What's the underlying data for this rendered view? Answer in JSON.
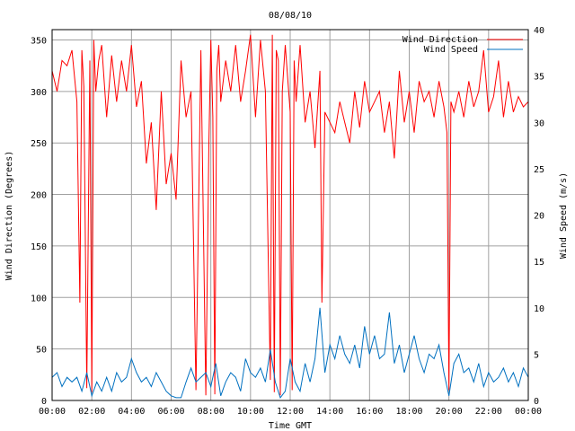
{
  "chart_data": {
    "type": "line",
    "title": "08/08/10",
    "xlabel": "Time GMT",
    "ylabel_left": "Wind Direction (Degrees)",
    "ylabel_right": "Wind Speed (m/s)",
    "x_ticks": [
      "00:00",
      "02:00",
      "04:00",
      "06:00",
      "08:00",
      "10:00",
      "12:00",
      "14:00",
      "16:00",
      "18:00",
      "20:00",
      "22:00",
      "00:00"
    ],
    "xlim_hours": [
      0,
      24
    ],
    "ylim_left": [
      0,
      360
    ],
    "yticks_left": [
      "0",
      "50",
      "100",
      "150",
      "200",
      "250",
      "300",
      "350"
    ],
    "ylim_right": [
      0,
      40
    ],
    "yticks_right": [
      "0",
      "5",
      "10",
      "15",
      "20",
      "25",
      "30",
      "35",
      "40"
    ],
    "grid": true,
    "legend_placement": "top-right",
    "colors": {
      "direction": "#ff0000",
      "speed": "#0070c0",
      "grid": "#a0a0a0"
    },
    "series": [
      {
        "name": "Wind Direction",
        "axis": "left",
        "x_hours": [
          0,
          0.25,
          0.5,
          0.75,
          1.0,
          1.25,
          1.4,
          1.5,
          1.6,
          1.75,
          1.9,
          2.0,
          2.1,
          2.2,
          2.35,
          2.5,
          2.75,
          3.0,
          3.25,
          3.5,
          3.75,
          4.0,
          4.25,
          4.5,
          4.75,
          5.0,
          5.25,
          5.5,
          5.75,
          6.0,
          6.25,
          6.5,
          6.75,
          7.0,
          7.25,
          7.5,
          7.75,
          7.9,
          8.0,
          8.1,
          8.2,
          8.3,
          8.4,
          8.5,
          8.75,
          9.0,
          9.25,
          9.5,
          9.75,
          10.0,
          10.25,
          10.5,
          10.75,
          11.0,
          11.1,
          11.2,
          11.3,
          11.4,
          11.5,
          11.6,
          11.75,
          12.0,
          12.1,
          12.2,
          12.3,
          12.5,
          12.75,
          13.0,
          13.25,
          13.5,
          13.6,
          13.75,
          14.0,
          14.25,
          14.5,
          14.75,
          15.0,
          15.25,
          15.5,
          15.75,
          16.0,
          16.25,
          16.5,
          16.75,
          17.0,
          17.25,
          17.5,
          17.75,
          18.0,
          18.25,
          18.5,
          18.75,
          19.0,
          19.25,
          19.5,
          19.75,
          19.9,
          20.0,
          20.1,
          20.25,
          20.5,
          20.75,
          21.0,
          21.25,
          21.5,
          21.75,
          22.0,
          22.25,
          22.5,
          22.75,
          23.0,
          23.25,
          23.5,
          23.75,
          24.0
        ],
        "values": [
          320,
          300,
          330,
          325,
          340,
          290,
          95,
          340,
          305,
          12,
          330,
          8,
          350,
          300,
          330,
          345,
          275,
          335,
          290,
          330,
          300,
          345,
          285,
          310,
          230,
          270,
          185,
          300,
          210,
          240,
          195,
          330,
          275,
          300,
          10,
          340,
          5,
          250,
          350,
          275,
          6,
          320,
          345,
          290,
          330,
          300,
          345,
          290,
          320,
          355,
          275,
          350,
          300,
          20,
          355,
          8,
          340,
          330,
          5,
          300,
          345,
          280,
          10,
          330,
          290,
          345,
          270,
          300,
          245,
          320,
          95,
          280,
          270,
          260,
          290,
          270,
          250,
          300,
          265,
          310,
          280,
          290,
          300,
          260,
          290,
          235,
          320,
          270,
          300,
          260,
          310,
          290,
          300,
          275,
          310,
          285,
          260,
          10,
          290,
          280,
          300,
          275,
          310,
          285,
          300,
          340,
          280,
          295,
          330,
          275,
          310,
          280,
          295,
          285,
          290
        ]
      },
      {
        "name": "Wind Speed",
        "axis": "right",
        "x_hours": [
          0,
          0.25,
          0.5,
          0.75,
          1.0,
          1.25,
          1.5,
          1.75,
          2.0,
          2.25,
          2.5,
          2.75,
          3.0,
          3.25,
          3.5,
          3.75,
          4.0,
          4.25,
          4.5,
          4.75,
          5.0,
          5.25,
          5.5,
          5.75,
          6.0,
          6.25,
          6.5,
          6.75,
          7.0,
          7.25,
          7.5,
          7.75,
          8.0,
          8.25,
          8.5,
          8.75,
          9.0,
          9.25,
          9.5,
          9.75,
          10.0,
          10.25,
          10.5,
          10.75,
          11.0,
          11.25,
          11.5,
          11.75,
          12.0,
          12.25,
          12.5,
          12.75,
          13.0,
          13.25,
          13.5,
          13.75,
          14.0,
          14.25,
          14.5,
          14.75,
          15.0,
          15.25,
          15.5,
          15.75,
          16.0,
          16.25,
          16.5,
          16.75,
          17.0,
          17.25,
          17.5,
          17.75,
          18.0,
          18.25,
          18.5,
          18.75,
          19.0,
          19.25,
          19.5,
          19.75,
          20.0,
          20.25,
          20.5,
          20.75,
          21.0,
          21.25,
          21.5,
          21.75,
          22.0,
          22.25,
          22.5,
          22.75,
          23.0,
          23.25,
          23.5,
          23.75,
          24.0
        ],
        "values": [
          2.5,
          3,
          1.5,
          2.5,
          2,
          2.5,
          1,
          3,
          0.5,
          2,
          1,
          2.5,
          1,
          3,
          2,
          2.5,
          4.5,
          3,
          2,
          2.5,
          1.5,
          3,
          2,
          1,
          0.5,
          0.3,
          0.3,
          2,
          3.5,
          2,
          2.5,
          3,
          1.5,
          4,
          0.5,
          2,
          3,
          2.5,
          1,
          4.5,
          3,
          2.5,
          3.5,
          2,
          5.5,
          2,
          0.3,
          1,
          4.5,
          2,
          1,
          4,
          2,
          4.5,
          10,
          3,
          6,
          4.5,
          7,
          5,
          4,
          6,
          3.5,
          8,
          5,
          7,
          4.5,
          5,
          9.5,
          4,
          6,
          3,
          5,
          7,
          4.5,
          3,
          5,
          4.5,
          6,
          3,
          0.5,
          4,
          5,
          3,
          3.5,
          2,
          4,
          1.5,
          3,
          2,
          2.5,
          3.5,
          2,
          3,
          1.5,
          3.5,
          2.5
        ]
      }
    ]
  }
}
